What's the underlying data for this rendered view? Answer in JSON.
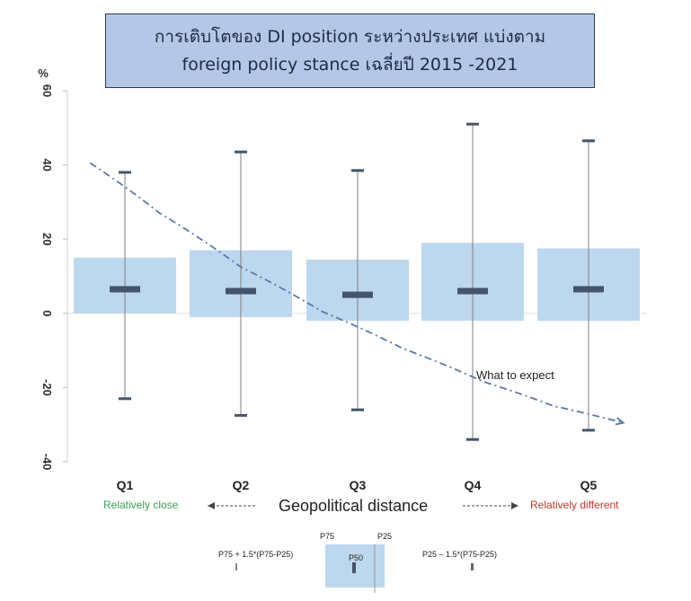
{
  "title": {
    "line1": "การเติบโตของ DI position ระหว่างประเทศ แบ่งตาม",
    "line2": "foreign policy stance เฉลี่ยปี 2015 -2021"
  },
  "chart_data": {
    "type": "box",
    "ylabel": "%",
    "ylim": [
      -40,
      60
    ],
    "yticks": [
      "60",
      "40",
      "20",
      "0",
      "-20",
      "-40"
    ],
    "categories": [
      "Q1",
      "Q2",
      "Q3",
      "Q4",
      "Q5"
    ],
    "boxes": [
      {
        "category": "Q1",
        "whisker_low": -23,
        "p25": 0,
        "median": 6.5,
        "p75": 15,
        "whisker_high": 38
      },
      {
        "category": "Q2",
        "whisker_low": -27.5,
        "p25": -1,
        "median": 6,
        "p75": 17,
        "whisker_high": 43.5
      },
      {
        "category": "Q3",
        "whisker_low": -26,
        "p25": -2,
        "median": 5,
        "p75": 14.5,
        "whisker_high": 38.5
      },
      {
        "category": "Q4",
        "whisker_low": -34,
        "p25": -2,
        "median": 6,
        "p75": 19,
        "whisker_high": 51
      },
      {
        "category": "Q5",
        "whisker_low": -31.5,
        "p25": -2,
        "median": 6.5,
        "p75": 17.5,
        "whisker_high": 46.5
      }
    ],
    "expectation_curve": {
      "label": "What to expect",
      "x": [
        0.7,
        1.3,
        2.0,
        2.7,
        3.4,
        4.1,
        4.7,
        5.3
      ],
      "y": [
        40.5,
        27,
        12.5,
        0.5,
        -9.5,
        -18.5,
        -25,
        -29.5
      ]
    },
    "xaxis_title": "Geopolitical distance",
    "left_annotation": "Relatively close",
    "right_annotation": "Relatively different"
  },
  "legend": {
    "p75": "P75",
    "p25": "P25",
    "p50": "P50",
    "upper_whisker_formula": "P75 + 1.5*(P75-P25)",
    "lower_whisker_formula": "P25 – 1.5*(P75-P25)"
  },
  "colors": {
    "box_fill": "#bdd7ee",
    "median": "#44546a",
    "whisker": "#7f7f7f",
    "curve": "#5b78a8",
    "close_green": "#3aa35a",
    "different_red": "#c0392b",
    "title_fill": "#b4c7e7"
  }
}
